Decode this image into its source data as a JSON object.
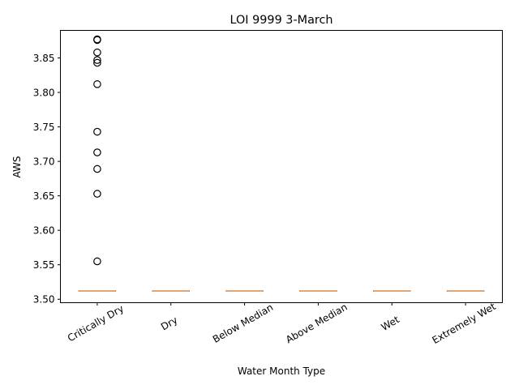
{
  "chart_data": {
    "type": "box",
    "title": "LOI 9999 3-March",
    "xlabel": "Water Month Type",
    "ylabel": "AWS",
    "categories": [
      "Critically Dry",
      "Dry",
      "Below Median",
      "Above Median",
      "Wet",
      "Extremely Wet"
    ],
    "yticks": [
      "3.50",
      "3.55",
      "3.60",
      "3.65",
      "3.70",
      "3.75",
      "3.80",
      "3.85"
    ],
    "ylim": [
      3.495,
      3.89
    ],
    "x_tick_rotation_deg": 30,
    "grid": false,
    "series": [
      {
        "category": "Critically Dry",
        "min": 3.512,
        "q1": 3.512,
        "median": 3.512,
        "q3": 3.512,
        "max": 3.512,
        "fliers": [
          3.555,
          3.653,
          3.689,
          3.713,
          3.743,
          3.812,
          3.843,
          3.847,
          3.858,
          3.876,
          3.877
        ]
      },
      {
        "category": "Dry",
        "min": 3.512,
        "q1": 3.512,
        "median": 3.512,
        "q3": 3.512,
        "max": 3.512,
        "fliers": []
      },
      {
        "category": "Below Median",
        "min": 3.512,
        "q1": 3.512,
        "median": 3.512,
        "q3": 3.512,
        "max": 3.512,
        "fliers": []
      },
      {
        "category": "Above Median",
        "min": 3.512,
        "q1": 3.512,
        "median": 3.512,
        "q3": 3.512,
        "max": 3.512,
        "fliers": []
      },
      {
        "category": "Wet",
        "min": 3.512,
        "q1": 3.512,
        "median": 3.512,
        "q3": 3.512,
        "max": 3.512,
        "fliers": []
      },
      {
        "category": "Extremely Wet",
        "min": 3.512,
        "q1": 3.512,
        "median": 3.512,
        "q3": 3.512,
        "max": 3.512,
        "fliers": []
      }
    ],
    "colors": {
      "median": "#e08a4a",
      "box": "#000000",
      "flier_edge": "#000000"
    }
  }
}
